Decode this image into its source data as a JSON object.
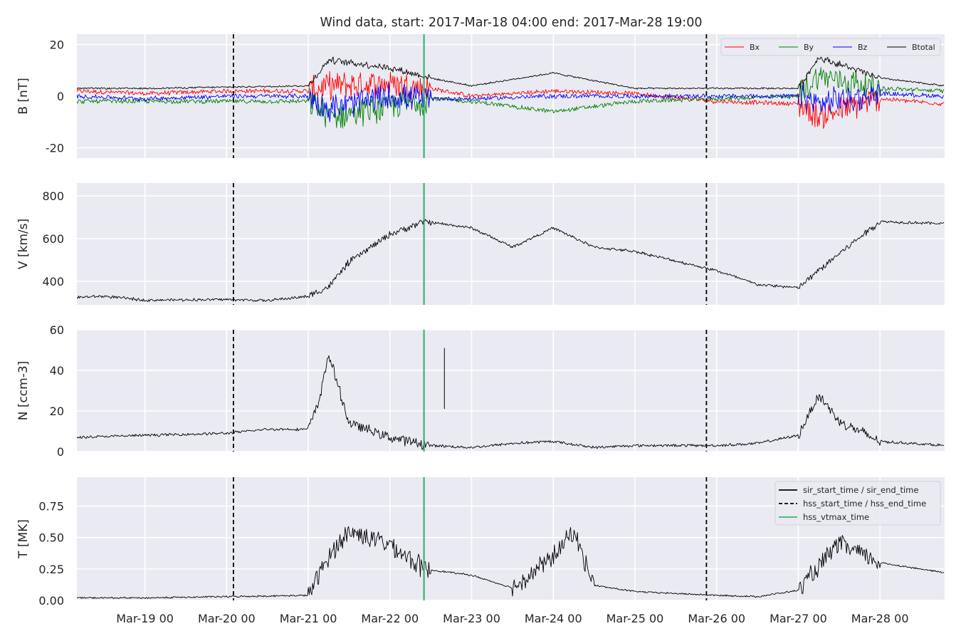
{
  "title": "Wind data, start: 2017-Mar-18 04:00  end: 2017-Mar-28 19:00",
  "chart_data": [
    {
      "type": "line",
      "ylabel": "B [nT]",
      "ylim": [
        -24,
        24
      ],
      "yticks": [
        20,
        0,
        -20
      ],
      "grid": true,
      "legend_placement": "top-right",
      "series": [
        {
          "name": "Bx",
          "color": "#ff0000",
          "x": [
            "2017-03-18T04:00",
            "2017-03-19T00:00",
            "2017-03-20T00:00",
            "2017-03-21T00:00",
            "2017-03-21T06:00",
            "2017-03-22T00:00",
            "2017-03-22T12:00",
            "2017-03-23T00:00",
            "2017-03-24T00:00",
            "2017-03-25T00:00",
            "2017-03-26T00:00",
            "2017-03-27T00:00",
            "2017-03-27T06:00",
            "2017-03-28T00:00",
            "2017-03-28T19:00"
          ],
          "values": [
            2,
            1,
            2,
            2,
            4,
            5,
            3,
            0,
            2,
            1,
            -2,
            -3,
            -8,
            -1,
            -3
          ]
        },
        {
          "name": "By",
          "color": "#008000",
          "x": [
            "2017-03-18T04:00",
            "2017-03-19T00:00",
            "2017-03-20T00:00",
            "2017-03-21T00:00",
            "2017-03-21T06:00",
            "2017-03-22T00:00",
            "2017-03-22T12:00",
            "2017-03-23T00:00",
            "2017-03-24T00:00",
            "2017-03-25T00:00",
            "2017-03-26T00:00",
            "2017-03-27T00:00",
            "2017-03-27T06:00",
            "2017-03-28T00:00",
            "2017-03-28T19:00"
          ],
          "values": [
            -2,
            -2,
            -2,
            -2,
            -8,
            -4,
            -1,
            -2,
            -6,
            -2,
            -1,
            0,
            8,
            3,
            2
          ]
        },
        {
          "name": "Bz",
          "color": "#0000ff",
          "x": [
            "2017-03-18T04:00",
            "2017-03-19T00:00",
            "2017-03-20T00:00",
            "2017-03-21T00:00",
            "2017-03-21T06:00",
            "2017-03-22T00:00",
            "2017-03-22T12:00",
            "2017-03-23T00:00",
            "2017-03-24T00:00",
            "2017-03-25T00:00",
            "2017-03-26T00:00",
            "2017-03-27T00:00",
            "2017-03-27T06:00",
            "2017-03-28T00:00",
            "2017-03-28T19:00"
          ],
          "values": [
            0,
            -1,
            0,
            0,
            -5,
            0,
            -1,
            -1,
            0,
            0,
            0,
            0,
            -3,
            1,
            0
          ]
        },
        {
          "name": "Btotal",
          "color": "#000000",
          "x": [
            "2017-03-18T04:00",
            "2017-03-19T00:00",
            "2017-03-20T00:00",
            "2017-03-21T00:00",
            "2017-03-21T06:00",
            "2017-03-22T00:00",
            "2017-03-22T12:00",
            "2017-03-23T00:00",
            "2017-03-24T00:00",
            "2017-03-25T00:00",
            "2017-03-26T00:00",
            "2017-03-27T00:00",
            "2017-03-27T06:00",
            "2017-03-28T00:00",
            "2017-03-28T19:00"
          ],
          "values": [
            3,
            3,
            3.5,
            4,
            14,
            11,
            7,
            4,
            9,
            3,
            3,
            3,
            15,
            7,
            4
          ]
        }
      ]
    },
    {
      "type": "line",
      "ylabel": "V [km/s]",
      "ylim": [
        290,
        860
      ],
      "yticks": [
        800,
        600,
        400
      ],
      "grid": true,
      "series": [
        {
          "name": "",
          "color": "#000000",
          "x": [
            "2017-03-18T04:00",
            "2017-03-18T12:00",
            "2017-03-19T00:00",
            "2017-03-20T00:00",
            "2017-03-20T12:00",
            "2017-03-21T00:00",
            "2017-03-21T06:00",
            "2017-03-21T12:00",
            "2017-03-22T00:00",
            "2017-03-22T10:00",
            "2017-03-23T00:00",
            "2017-03-23T12:00",
            "2017-03-24T00:00",
            "2017-03-24T12:00",
            "2017-03-25T00:00",
            "2017-03-26T00:00",
            "2017-03-26T12:00",
            "2017-03-27T00:00",
            "2017-03-27T12:00",
            "2017-03-28T00:00",
            "2017-03-28T19:00"
          ],
          "values": [
            325,
            330,
            312,
            315,
            310,
            330,
            375,
            490,
            620,
            680,
            650,
            560,
            650,
            560,
            540,
            450,
            385,
            370,
            530,
            680,
            670
          ]
        }
      ]
    },
    {
      "type": "line",
      "ylabel": "N [ccm-3]",
      "ylim": [
        0,
        60
      ],
      "yticks": [
        60,
        40,
        20,
        0
      ],
      "grid": true,
      "series": [
        {
          "name": "",
          "color": "#000000",
          "x": [
            "2017-03-18T04:00",
            "2017-03-19T00:00",
            "2017-03-20T00:00",
            "2017-03-20T12:00",
            "2017-03-21T00:00",
            "2017-03-21T03:00",
            "2017-03-21T06:00",
            "2017-03-21T12:00",
            "2017-03-22T00:00",
            "2017-03-22T12:00",
            "2017-03-23T00:00",
            "2017-03-23T12:00",
            "2017-03-24T00:00",
            "2017-03-24T12:00",
            "2017-03-25T00:00",
            "2017-03-26T00:00",
            "2017-03-26T12:00",
            "2017-03-27T00:00",
            "2017-03-27T06:00",
            "2017-03-27T12:00",
            "2017-03-28T00:00",
            "2017-03-28T19:00"
          ],
          "values": [
            7,
            8,
            9,
            11,
            11,
            24,
            48,
            14,
            7,
            3,
            2,
            4,
            5,
            2,
            3,
            3,
            4,
            8,
            28,
            15,
            5,
            3
          ]
        }
      ]
    },
    {
      "type": "line",
      "ylabel": "T [MK]",
      "ylim": [
        0,
        0.98
      ],
      "yticks": [
        0.75,
        0.5,
        0.25,
        0.0
      ],
      "ytick_labels": [
        "0.75",
        "0.50",
        "0.25",
        "0.00"
      ],
      "grid": true,
      "legend_placement": "top-right",
      "series": [
        {
          "name": "",
          "color": "#000000",
          "x": [
            "2017-03-18T04:00",
            "2017-03-19T00:00",
            "2017-03-20T00:00",
            "2017-03-21T00:00",
            "2017-03-21T06:00",
            "2017-03-21T12:00",
            "2017-03-22T00:00",
            "2017-03-22T10:00",
            "2017-03-23T00:00",
            "2017-03-23T12:00",
            "2017-03-24T00:00",
            "2017-03-24T06:00",
            "2017-03-24T12:00",
            "2017-03-25T00:00",
            "2017-03-26T00:00",
            "2017-03-26T12:00",
            "2017-03-27T00:00",
            "2017-03-27T12:00",
            "2017-03-28T00:00",
            "2017-03-28T19:00"
          ],
          "values": [
            0.02,
            0.02,
            0.03,
            0.04,
            0.35,
            0.55,
            0.45,
            0.25,
            0.2,
            0.1,
            0.35,
            0.55,
            0.12,
            0.07,
            0.04,
            0.03,
            0.08,
            0.45,
            0.3,
            0.22
          ]
        }
      ]
    }
  ],
  "x_axis": {
    "range": [
      "2017-03-18T04:00",
      "2017-03-28T19:00"
    ],
    "ticks": [
      "2017-03-19T00:00",
      "2017-03-20T00:00",
      "2017-03-21T00:00",
      "2017-03-22T00:00",
      "2017-03-23T00:00",
      "2017-03-24T00:00",
      "2017-03-25T00:00",
      "2017-03-26T00:00",
      "2017-03-27T00:00",
      "2017-03-28T00:00"
    ],
    "tick_labels": [
      "Mar-19 00",
      "Mar-20 00",
      "Mar-21 00",
      "Mar-22 00",
      "Mar-23 00",
      "Mar-24 00",
      "Mar-25 00",
      "Mar-26 00",
      "Mar-27 00",
      "Mar-28 00"
    ]
  },
  "markers": [
    {
      "style": "dashed",
      "color": "#000000",
      "x": "2017-03-20T02:00"
    },
    {
      "style": "solid",
      "color": "#3cb371",
      "x": "2017-03-22T10:00"
    },
    {
      "style": "dashed",
      "color": "#000000",
      "x": "2017-03-25T21:00"
    }
  ],
  "legend_b": [
    "Bx",
    "By",
    "Bz",
    "Btotal"
  ],
  "legend_t": [
    {
      "label": "sir_start_time / sir_end_time",
      "style": "solid",
      "color": "#000000"
    },
    {
      "label": "hss_start_time / hss_end_time",
      "style": "dashed",
      "color": "#000000"
    },
    {
      "label": "hss_vtmax_time",
      "style": "solid",
      "color": "#3cb371"
    }
  ]
}
